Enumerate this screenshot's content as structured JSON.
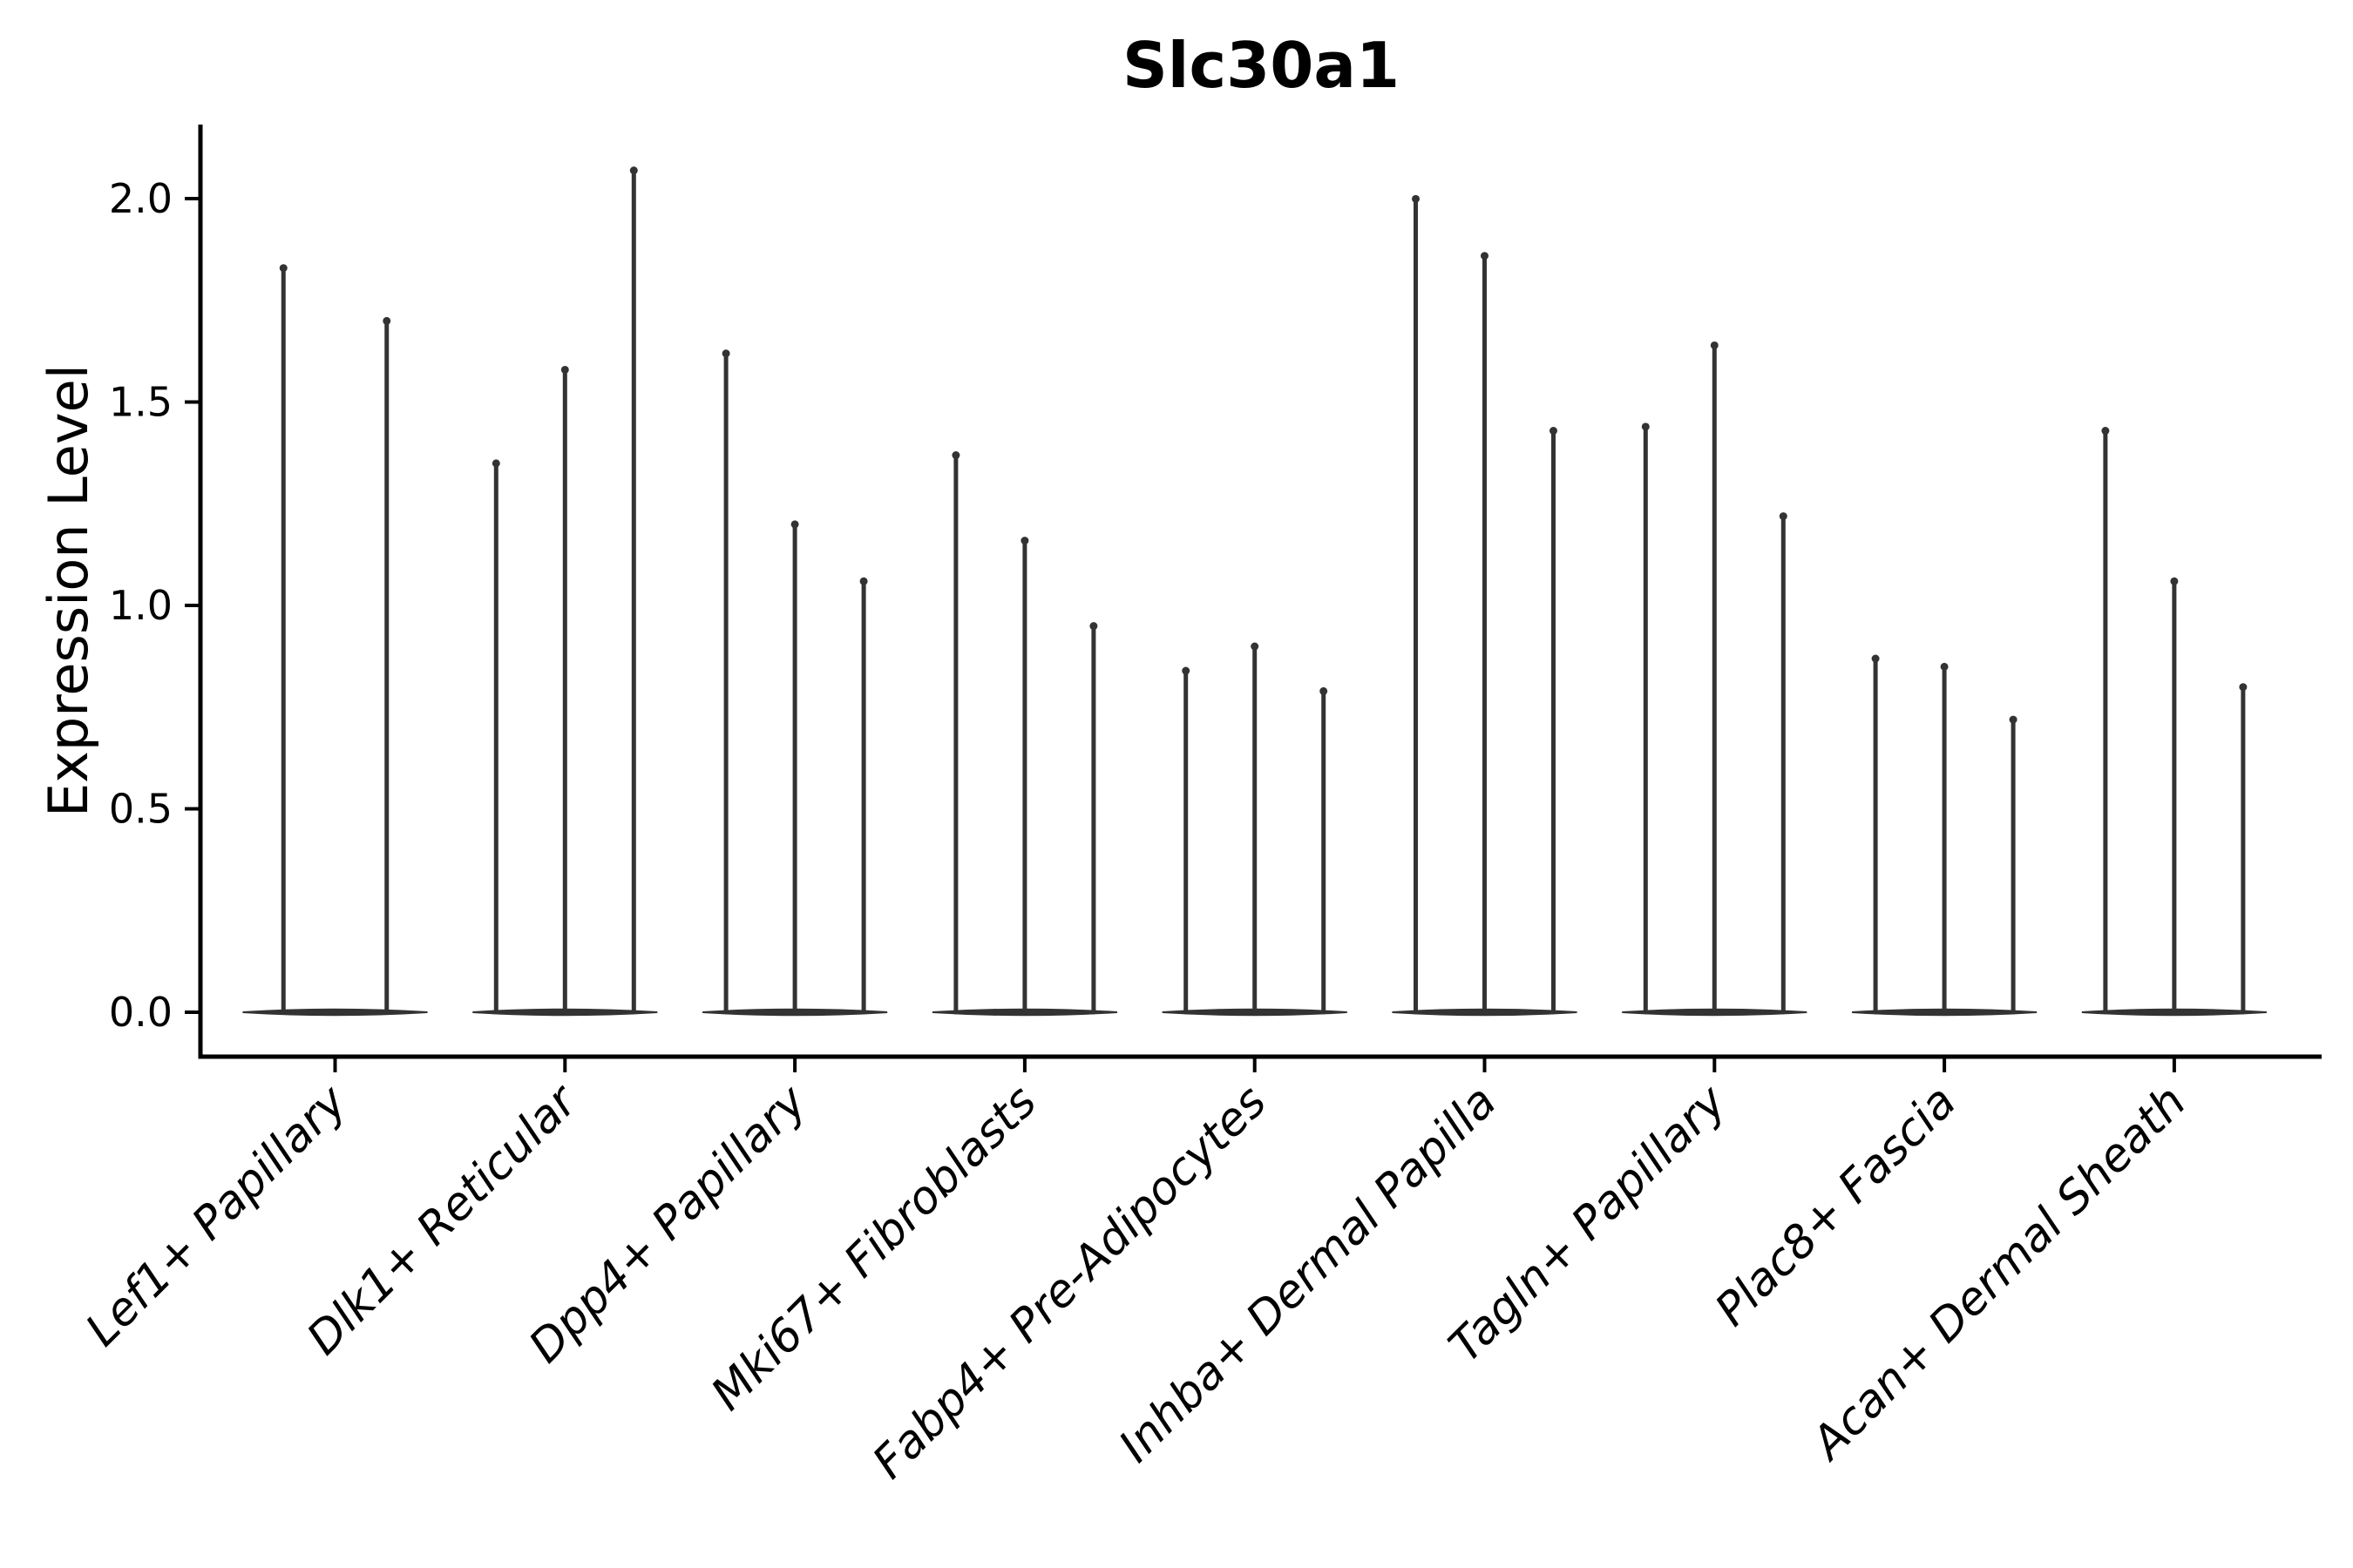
{
  "chart_data": {
    "type": "violin",
    "title": "Slc30a1",
    "ylabel": "Expression Level",
    "xlabel": "",
    "legend_position": "none",
    "grid": false,
    "background_color": "#ffffff",
    "axis_color": "#000000",
    "violin_color": "#333333",
    "ylim": [
      -0.1,
      2.18
    ],
    "ytick_values": [
      0.0,
      0.5,
      1.0,
      1.5,
      2.0
    ],
    "ytick_labels": [
      "0.0",
      "0.5",
      "1.0",
      "1.5",
      "2.0"
    ],
    "categories": [
      "Lef1+ Papillary",
      "Dlk1+ Reticular",
      "Dpp4+ Papillary",
      "Mki67+ Fibroblasts",
      "Fabp4+ Pre-Adipocytes",
      "Inhba+ Dermal Papilla",
      "Tagln+ Papillary",
      "Plac8+ Fascia",
      "Acan+ Dermal Sheath"
    ],
    "violins": [
      {
        "category": "Lef1+ Papillary",
        "spike_maxima": [
          1.84,
          1.71
        ]
      },
      {
        "category": "Dlk1+ Reticular",
        "spike_maxima": [
          1.36,
          1.59,
          2.08
        ]
      },
      {
        "category": "Dpp4+ Papillary",
        "spike_maxima": [
          1.63,
          1.21,
          1.07
        ]
      },
      {
        "category": "Mki67+ Fibroblasts",
        "spike_maxima": [
          1.38,
          1.17,
          0.96
        ]
      },
      {
        "category": "Fabp4+ Pre-Adipocytes",
        "spike_maxima": [
          0.85,
          0.91,
          0.8
        ]
      },
      {
        "category": "Inhba+ Dermal Papilla",
        "spike_maxima": [
          2.01,
          1.87,
          1.44
        ]
      },
      {
        "category": "Tagln+ Papillary",
        "spike_maxima": [
          1.45,
          1.65,
          1.23
        ]
      },
      {
        "category": "Plac8+ Fascia",
        "spike_maxima": [
          0.88,
          0.86,
          0.73
        ]
      },
      {
        "category": "Acan+ Dermal Sheath",
        "spike_maxima": [
          1.44,
          1.07,
          0.81
        ]
      }
    ]
  }
}
